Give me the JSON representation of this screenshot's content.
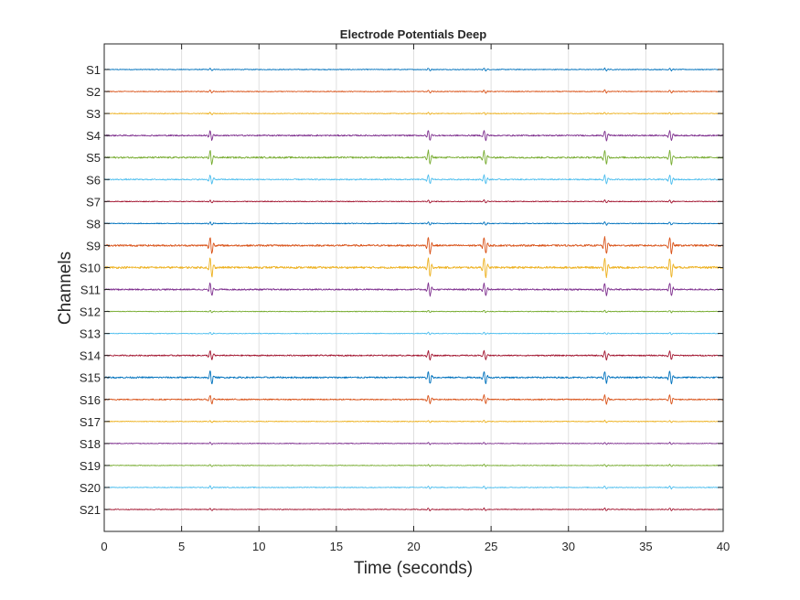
{
  "chart_data": {
    "type": "line",
    "title": "Electrode Potentials Deep",
    "xlabel": "Time (seconds)",
    "ylabel": "Channels",
    "xlim": [
      0,
      40
    ],
    "xticks": [
      0,
      5,
      10,
      15,
      20,
      25,
      30,
      35,
      40
    ],
    "grid_x": true,
    "grid_y": false,
    "event_times_seconds": [
      6.9,
      21.0,
      24.6,
      32.4,
      36.6
    ],
    "series": [
      {
        "name": "S1",
        "color": "#0072BD",
        "amplitude": 0.1
      },
      {
        "name": "S2",
        "color": "#D95319",
        "amplitude": 0.12
      },
      {
        "name": "S3",
        "color": "#EDB120",
        "amplitude": 0.08
      },
      {
        "name": "S4",
        "color": "#7E2F8E",
        "amplitude": 0.4
      },
      {
        "name": "S5",
        "color": "#77AC30",
        "amplitude": 0.55
      },
      {
        "name": "S6",
        "color": "#4DBEEE",
        "amplitude": 0.35
      },
      {
        "name": "S7",
        "color": "#A2142F",
        "amplitude": 0.12
      },
      {
        "name": "S8",
        "color": "#0072BD",
        "amplitude": 0.12
      },
      {
        "name": "S9",
        "color": "#D95319",
        "amplitude": 0.65
      },
      {
        "name": "S10",
        "color": "#EDB120",
        "amplitude": 0.75
      },
      {
        "name": "S11",
        "color": "#7E2F8E",
        "amplitude": 0.5
      },
      {
        "name": "S12",
        "color": "#77AC30",
        "amplitude": 0.08
      },
      {
        "name": "S13",
        "color": "#4DBEEE",
        "amplitude": 0.08
      },
      {
        "name": "S14",
        "color": "#A2142F",
        "amplitude": 0.35
      },
      {
        "name": "S15",
        "color": "#0072BD",
        "amplitude": 0.5
      },
      {
        "name": "S16",
        "color": "#D95319",
        "amplitude": 0.35
      },
      {
        "name": "S17",
        "color": "#EDB120",
        "amplitude": 0.08
      },
      {
        "name": "S18",
        "color": "#7E2F8E",
        "amplitude": 0.08
      },
      {
        "name": "S19",
        "color": "#77AC30",
        "amplitude": 0.08
      },
      {
        "name": "S20",
        "color": "#4DBEEE",
        "amplitude": 0.12
      },
      {
        "name": "S21",
        "color": "#A2142F",
        "amplitude": 0.1
      }
    ]
  }
}
